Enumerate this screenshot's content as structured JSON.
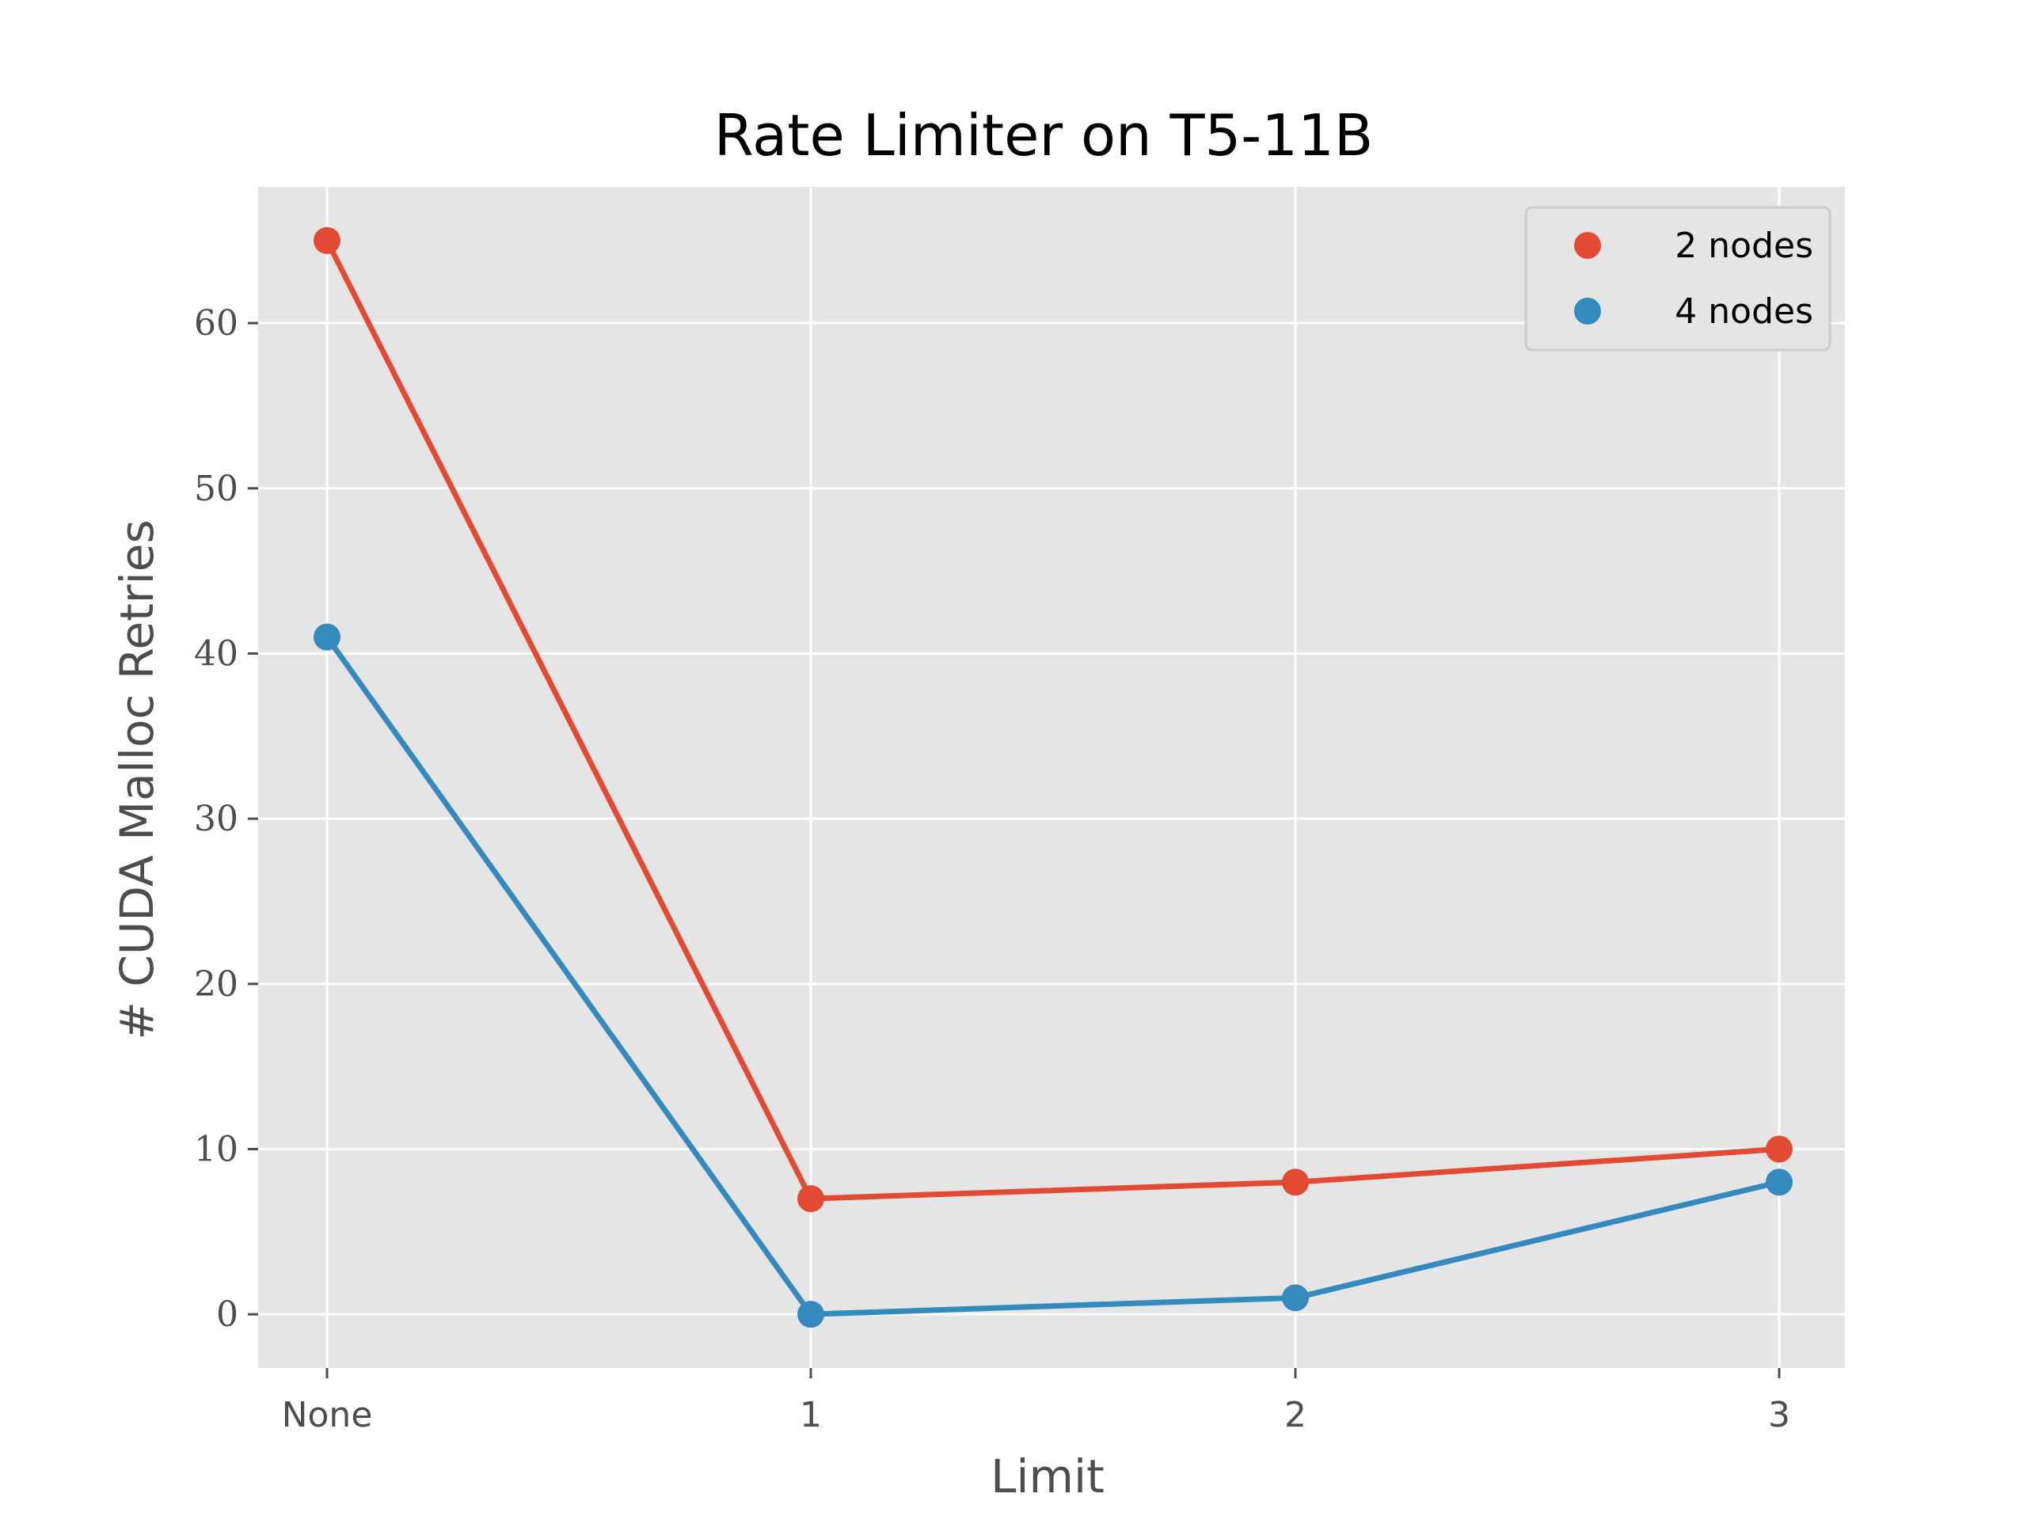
{
  "chart_data": {
    "type": "line",
    "title": "Rate Limiter on T5-11B",
    "xlabel": "Limit",
    "ylabel": "# CUDA Malloc Retries",
    "categories": [
      "None",
      "1",
      "2",
      "3"
    ],
    "ylim": [
      -3.25,
      68.25
    ],
    "yticks": [
      0,
      10,
      20,
      30,
      40,
      50,
      60
    ],
    "grid": true,
    "legend_position": "top-right",
    "series": [
      {
        "name": "2 nodes",
        "values": [
          65,
          7,
          8,
          10
        ],
        "color": "#e24a33"
      },
      {
        "name": "4 nodes",
        "values": [
          41,
          0,
          1,
          8
        ],
        "color": "#348abd"
      }
    ],
    "background_color": "#e5e5e5",
    "grid_color": "#ffffff"
  }
}
